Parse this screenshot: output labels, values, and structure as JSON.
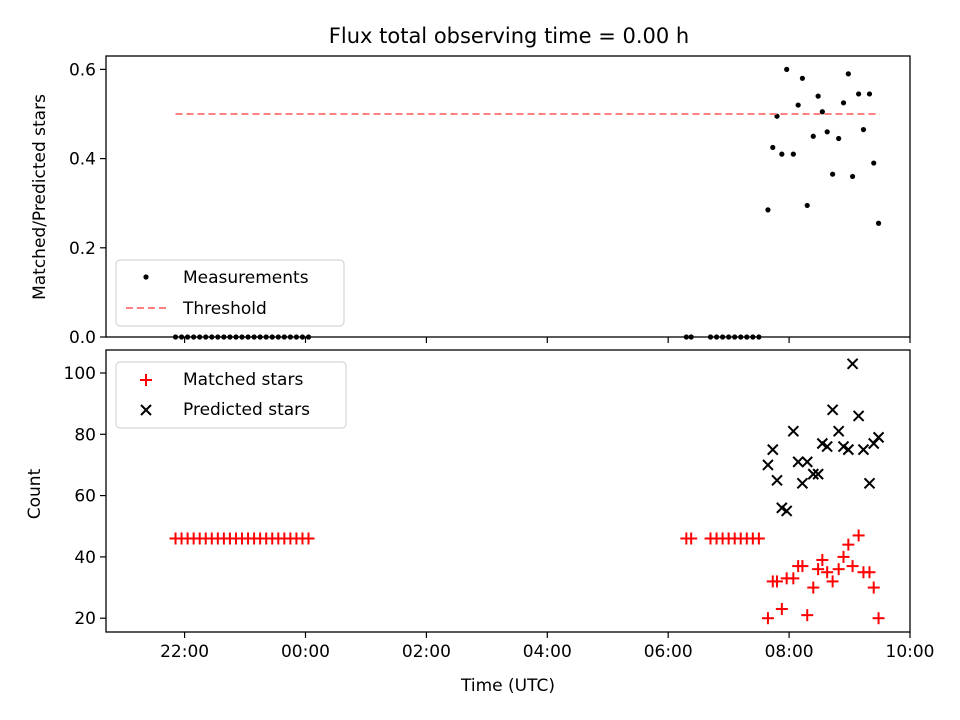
{
  "title": "Flux total observing time = 0.00 h",
  "chart_data": [
    {
      "type": "scatter",
      "title": "Flux total observing time = 0.00 h",
      "xlabel": "",
      "ylabel": "Matched/Predicted stars",
      "x_unit": "hours (UTC, relative to 00:00 of second day)",
      "xlim": [
        -3.3,
        10.0
      ],
      "ylim": [
        0.0,
        0.63
      ],
      "yticks": [
        0.0,
        0.2,
        0.4,
        0.6
      ],
      "ytick_labels": [
        "0.0",
        "0.2",
        "0.4",
        "0.6"
      ],
      "grid": false,
      "legend": {
        "placement": "lower-left",
        "entries": [
          "Measurements",
          "Threshold"
        ]
      },
      "series": [
        {
          "name": "Measurements",
          "marker": "dot",
          "color": "#000000",
          "points": [
            [
              -2.15,
              0.0
            ],
            [
              -2.05,
              0.0
            ],
            [
              -1.95,
              0.0
            ],
            [
              -1.85,
              0.0
            ],
            [
              -1.75,
              0.0
            ],
            [
              -1.65,
              0.0
            ],
            [
              -1.55,
              0.0
            ],
            [
              -1.45,
              0.0
            ],
            [
              -1.35,
              0.0
            ],
            [
              -1.25,
              0.0
            ],
            [
              -1.15,
              0.0
            ],
            [
              -1.05,
              0.0
            ],
            [
              -0.95,
              0.0
            ],
            [
              -0.85,
              0.0
            ],
            [
              -0.75,
              0.0
            ],
            [
              -0.65,
              0.0
            ],
            [
              -0.55,
              0.0
            ],
            [
              -0.45,
              0.0
            ],
            [
              -0.35,
              0.0
            ],
            [
              -0.25,
              0.0
            ],
            [
              -0.15,
              0.0
            ],
            [
              -0.05,
              0.0
            ],
            [
              0.05,
              0.0
            ],
            [
              6.3,
              0.0
            ],
            [
              6.38,
              0.0
            ],
            [
              6.7,
              0.0
            ],
            [
              6.8,
              0.0
            ],
            [
              6.9,
              0.0
            ],
            [
              7.0,
              0.0
            ],
            [
              7.1,
              0.0
            ],
            [
              7.2,
              0.0
            ],
            [
              7.3,
              0.0
            ],
            [
              7.4,
              0.0
            ],
            [
              7.5,
              0.0
            ],
            [
              7.65,
              0.285
            ],
            [
              7.73,
              0.425
            ],
            [
              7.8,
              0.495
            ],
            [
              7.88,
              0.41
            ],
            [
              7.96,
              0.6
            ],
            [
              8.07,
              0.41
            ],
            [
              8.15,
              0.52
            ],
            [
              8.22,
              0.58
            ],
            [
              8.3,
              0.295
            ],
            [
              8.4,
              0.45
            ],
            [
              8.48,
              0.54
            ],
            [
              8.55,
              0.505
            ],
            [
              8.63,
              0.46
            ],
            [
              8.72,
              0.365
            ],
            [
              8.82,
              0.445
            ],
            [
              8.9,
              0.525
            ],
            [
              8.98,
              0.59
            ],
            [
              9.05,
              0.36
            ],
            [
              9.15,
              0.545
            ],
            [
              9.23,
              0.465
            ],
            [
              9.33,
              0.545
            ],
            [
              9.4,
              0.39
            ],
            [
              9.48,
              0.255
            ]
          ]
        },
        {
          "name": "Threshold",
          "style": "dashed-line",
          "color": "#ff8080",
          "points": [
            [
              -2.15,
              0.5
            ],
            [
              9.5,
              0.5
            ]
          ]
        }
      ]
    },
    {
      "type": "scatter",
      "title": "",
      "xlabel": "Time (UTC)",
      "ylabel": "Count",
      "x_unit": "hours (UTC, relative to 00:00 of second day)",
      "xlim": [
        -3.3,
        10.0
      ],
      "ylim": [
        15.5,
        107.5
      ],
      "xticks": [
        -2,
        0,
        2,
        4,
        6,
        8,
        10
      ],
      "xtick_labels": [
        "22:00",
        "00:00",
        "02:00",
        "04:00",
        "06:00",
        "08:00",
        "10:00"
      ],
      "yticks": [
        20,
        40,
        60,
        80,
        100
      ],
      "ytick_labels": [
        "20",
        "40",
        "60",
        "80",
        "100"
      ],
      "grid": false,
      "legend": {
        "placement": "top-left",
        "entries": [
          "Matched stars",
          "Predicted stars"
        ]
      },
      "series": [
        {
          "name": "Matched stars",
          "marker": "plus",
          "color": "#ff0000",
          "points": [
            [
              -2.15,
              46
            ],
            [
              -2.05,
              46
            ],
            [
              -1.95,
              46
            ],
            [
              -1.85,
              46
            ],
            [
              -1.75,
              46
            ],
            [
              -1.65,
              46
            ],
            [
              -1.55,
              46
            ],
            [
              -1.45,
              46
            ],
            [
              -1.35,
              46
            ],
            [
              -1.25,
              46
            ],
            [
              -1.15,
              46
            ],
            [
              -1.05,
              46
            ],
            [
              -0.95,
              46
            ],
            [
              -0.85,
              46
            ],
            [
              -0.75,
              46
            ],
            [
              -0.65,
              46
            ],
            [
              -0.55,
              46
            ],
            [
              -0.45,
              46
            ],
            [
              -0.35,
              46
            ],
            [
              -0.25,
              46
            ],
            [
              -0.15,
              46
            ],
            [
              -0.05,
              46
            ],
            [
              0.05,
              46
            ],
            [
              6.3,
              46
            ],
            [
              6.38,
              46
            ],
            [
              6.7,
              46
            ],
            [
              6.8,
              46
            ],
            [
              6.9,
              46
            ],
            [
              7.0,
              46
            ],
            [
              7.1,
              46
            ],
            [
              7.2,
              46
            ],
            [
              7.3,
              46
            ],
            [
              7.4,
              46
            ],
            [
              7.5,
              46
            ],
            [
              7.65,
              20
            ],
            [
              7.73,
              32
            ],
            [
              7.8,
              32
            ],
            [
              7.88,
              23
            ],
            [
              7.96,
              33
            ],
            [
              8.07,
              33
            ],
            [
              8.15,
              37
            ],
            [
              8.22,
              37
            ],
            [
              8.3,
              21
            ],
            [
              8.4,
              30
            ],
            [
              8.48,
              36
            ],
            [
              8.55,
              39
            ],
            [
              8.63,
              35
            ],
            [
              8.72,
              32
            ],
            [
              8.82,
              36
            ],
            [
              8.9,
              40
            ],
            [
              8.98,
              44
            ],
            [
              9.05,
              37
            ],
            [
              9.15,
              47
            ],
            [
              9.23,
              35
            ],
            [
              9.33,
              35
            ],
            [
              9.4,
              30
            ],
            [
              9.48,
              20
            ]
          ]
        },
        {
          "name": "Predicted stars",
          "marker": "x",
          "color": "#000000",
          "points": [
            [
              7.65,
              70
            ],
            [
              7.73,
              75
            ],
            [
              7.8,
              65
            ],
            [
              7.88,
              56
            ],
            [
              7.96,
              55
            ],
            [
              8.07,
              81
            ],
            [
              8.15,
              71
            ],
            [
              8.22,
              64
            ],
            [
              8.3,
              71
            ],
            [
              8.4,
              67
            ],
            [
              8.48,
              67
            ],
            [
              8.55,
              77
            ],
            [
              8.63,
              76
            ],
            [
              8.72,
              88
            ],
            [
              8.82,
              81
            ],
            [
              8.9,
              76
            ],
            [
              8.98,
              75
            ],
            [
              9.05,
              103
            ],
            [
              9.15,
              86
            ],
            [
              9.23,
              75
            ],
            [
              9.33,
              64
            ],
            [
              9.4,
              77
            ],
            [
              9.48,
              79
            ]
          ]
        }
      ]
    }
  ]
}
